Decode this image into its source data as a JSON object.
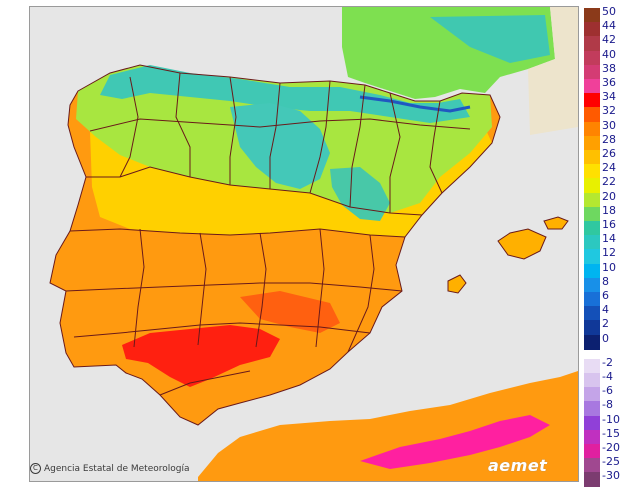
{
  "legend": {
    "items": [
      {
        "label": "50",
        "color": "#8b3a1a"
      },
      {
        "label": "44",
        "color": "#9e3030"
      },
      {
        "label": "42",
        "color": "#b03a48"
      },
      {
        "label": "40",
        "color": "#c23c5c"
      },
      {
        "label": "38",
        "color": "#d43c74"
      },
      {
        "label": "36",
        "color": "#f0409a"
      },
      {
        "label": "34",
        "color": "#ff0000"
      },
      {
        "label": "32",
        "color": "#ff5a00"
      },
      {
        "label": "30",
        "color": "#ff8400"
      },
      {
        "label": "28",
        "color": "#ffa000"
      },
      {
        "label": "26",
        "color": "#ffc000"
      },
      {
        "label": "24",
        "color": "#ffe000"
      },
      {
        "label": "22",
        "color": "#e8f000"
      },
      {
        "label": "20",
        "color": "#b4e830"
      },
      {
        "label": "18",
        "color": "#6ed860"
      },
      {
        "label": "16",
        "color": "#30c8a0"
      },
      {
        "label": "14",
        "color": "#2cc8c0"
      },
      {
        "label": "12",
        "color": "#20c8e0"
      },
      {
        "label": "10",
        "color": "#00b4f0"
      },
      {
        "label": "8",
        "color": "#1890e8"
      },
      {
        "label": "6",
        "color": "#1870d8"
      },
      {
        "label": "4",
        "color": "#1450b8"
      },
      {
        "label": "2",
        "color": "#103898"
      },
      {
        "label": "0",
        "color": "#0c2070"
      },
      {
        "label": "-2",
        "color": "#e8dcf4"
      },
      {
        "label": "-4",
        "color": "#d8c4ee"
      },
      {
        "label": "-6",
        "color": "#c4a4e8"
      },
      {
        "label": "-8",
        "color": "#a878e0"
      },
      {
        "label": "-10",
        "color": "#9040d8"
      },
      {
        "label": "-15",
        "color": "#c030c0"
      },
      {
        "label": "-20",
        "color": "#e020a0"
      },
      {
        "label": "-25",
        "color": "#a04890"
      },
      {
        "label": "-30",
        "color": "#7c3c70"
      }
    ]
  },
  "credit": {
    "text": "Agencia Estatal de Meteorología"
  },
  "brand": {
    "text": "aemet"
  },
  "colors": {
    "sea": "#e6e6e6",
    "land_unmapped": "#e0e0e0",
    "borders": "#6a1a1a"
  }
}
